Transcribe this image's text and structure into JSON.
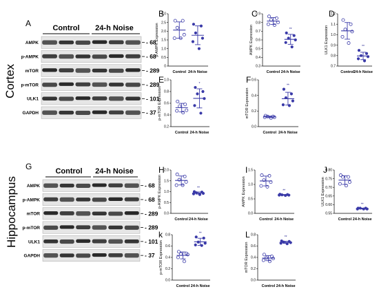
{
  "blot_panels": [
    {
      "label": "A",
      "region": "Cortex",
      "groups": [
        "Control",
        "24-h Noise"
      ],
      "rows": [
        {
          "protein": "AMPK",
          "kda": "68"
        },
        {
          "protein": "p-AMPK",
          "kda": "68"
        },
        {
          "protein": "mTOR",
          "kda": "289"
        },
        {
          "protein": "p-mTOR",
          "kda": "289"
        },
        {
          "protein": "ULK1",
          "kda": "101"
        },
        {
          "protein": "GAPDH",
          "kda": "37"
        }
      ]
    },
    {
      "label": "G",
      "region": "Hippocampus",
      "groups": [
        "Control",
        "24-h Noise"
      ],
      "rows": [
        {
          "protein": "AMPK",
          "kda": "68"
        },
        {
          "protein": "p-AMPK",
          "kda": "68"
        },
        {
          "protein": "mTOR",
          "kda": "289"
        },
        {
          "protein": "p-mTOR",
          "kda": "289"
        },
        {
          "protein": "ULK1",
          "kda": "101"
        },
        {
          "protein": "GAPDH",
          "kda": "37"
        }
      ]
    }
  ],
  "colors": {
    "points": "#3a3aa8",
    "blot_bg": "#e6e6e6",
    "band": "#1a1a1a"
  },
  "chart_data": [
    {
      "label": "B",
      "type": "scatter",
      "ylabel": "p-AMPK Expression",
      "categories": [
        "Control",
        "24-h Noise"
      ],
      "ylim": [
        0,
        3
      ],
      "yticks": [
        "0",
        "0.5",
        "1.0",
        "1.5",
        "2.0",
        "2.5",
        "3.0"
      ],
      "series": [
        {
          "values": [
            [
              2.6,
              2.6,
              2.2,
              1.8,
              1.6,
              1.6
            ],
            [
              2.4,
              2.3,
              1.9,
              1.6,
              1.4,
              1.0
            ]
          ]
        }
      ],
      "significance": [
        "",
        ""
      ]
    },
    {
      "label": "C",
      "type": "scatter",
      "ylabel": "AMPK Expression",
      "categories": [
        "Control",
        "24-h Noise"
      ],
      "ylim": [
        0.3,
        0.9
      ],
      "yticks": [
        "0.3",
        "0.4",
        "0.5",
        "0.6",
        "0.7",
        "0.8",
        "0.9"
      ],
      "series": [
        {
          "values": [
            [
              0.87,
              0.85,
              0.83,
              0.8,
              0.78,
              0.77
            ],
            [
              0.68,
              0.65,
              0.62,
              0.6,
              0.57,
              0.52
            ]
          ]
        }
      ],
      "significance": [
        "",
        "**"
      ]
    },
    {
      "label": "D",
      "type": "scatter",
      "ylabel": "ULK1 Expression",
      "categories": [
        "Control",
        "24-h Noise"
      ],
      "ylim": [
        0.7,
        1.2
      ],
      "yticks": [
        "0.7",
        "0.8",
        "0.9",
        "1.0",
        "1.1",
        "1.2"
      ],
      "series": [
        {
          "values": [
            [
              1.14,
              1.1,
              1.05,
              1.03,
              0.98,
              0.92
            ],
            [
              0.85,
              0.82,
              0.8,
              0.79,
              0.77,
              0.75
            ]
          ]
        }
      ],
      "significance": [
        "",
        "**"
      ]
    },
    {
      "label": "E",
      "type": "scatter",
      "ylabel": "p-mTOR Expression",
      "categories": [
        "Control",
        "24-h Noise"
      ],
      "ylim": [
        0.2,
        1.0
      ],
      "yticks": [
        "0.2",
        "0.4",
        "0.6",
        "0.8",
        "1.0"
      ],
      "series": [
        {
          "values": [
            [
              0.63,
              0.58,
              0.55,
              0.48,
              0.47,
              0.44
            ],
            [
              0.87,
              0.8,
              0.76,
              0.68,
              0.56,
              0.43
            ]
          ]
        }
      ],
      "significance": [
        "",
        "*"
      ]
    },
    {
      "label": "F",
      "type": "scatter",
      "ylabel": "mTOR Expression",
      "categories": [
        "Control",
        "24-h Noise"
      ],
      "ylim": [
        0.0,
        0.6
      ],
      "yticks": [
        "0.0",
        "0.2",
        "0.4",
        "0.6"
      ],
      "series": [
        {
          "values": [
            [
              0.14,
              0.13,
              0.13,
              0.12,
              0.12,
              0.11
            ],
            [
              0.48,
              0.42,
              0.37,
              0.33,
              0.28,
              0.27
            ]
          ]
        }
      ],
      "significance": [
        "",
        "**"
      ]
    },
    {
      "label": "H",
      "type": "scatter",
      "ylabel": "p-AMPK Expression",
      "categories": [
        "Control",
        "24-h Noise"
      ],
      "ylim": [
        0.0,
        2.0
      ],
      "yticks": [
        "0.0",
        "0.5",
        "1.0",
        "1.5",
        "2.0"
      ],
      "series": [
        {
          "values": [
            [
              1.8,
              1.7,
              1.55,
              1.45,
              1.3,
              1.3
            ],
            [
              1.0,
              0.98,
              0.95,
              0.92,
              0.9,
              0.87
            ]
          ]
        }
      ],
      "significance": [
        "",
        "**"
      ]
    },
    {
      "label": "I",
      "type": "scatter",
      "ylabel": "AMPK Expression",
      "categories": [
        "Control",
        "24-h Noise"
      ],
      "ylim": [
        0.0,
        1.5
      ],
      "yticks": [
        "0.0",
        "0.5",
        "1.0",
        "1.5"
      ],
      "series": [
        {
          "values": [
            [
              1.32,
              1.3,
              1.15,
              1.08,
              0.95,
              0.92
            ],
            [
              0.66,
              0.65,
              0.64,
              0.63,
              0.63,
              0.62
            ]
          ]
        }
      ],
      "significance": [
        "",
        "**"
      ]
    },
    {
      "label": "J",
      "type": "scatter",
      "ylabel": "ULK1 Expression",
      "categories": [
        "Control",
        "24-h Noise"
      ],
      "ylim": [
        0.55,
        0.8
      ],
      "yticks": [
        "0.55",
        "0.60",
        "0.65",
        "0.70",
        "0.75",
        "0.80"
      ],
      "series": [
        {
          "values": [
            [
              0.77,
              0.76,
              0.76,
              0.73,
              0.72,
              0.71
            ],
            [
              0.58,
              0.58,
              0.58,
              0.575,
              0.575,
              0.575
            ]
          ]
        }
      ],
      "significance": [
        "",
        "**"
      ]
    },
    {
      "label": "k",
      "type": "scatter",
      "ylabel": "p-mTOR Expression",
      "categories": [
        "Control",
        "24-h Noise"
      ],
      "ylim": [
        0.0,
        0.8
      ],
      "yticks": [
        "0.0",
        "0.2",
        "0.4",
        "0.6",
        "0.8"
      ],
      "series": [
        {
          "values": [
            [
              0.5,
              0.47,
              0.46,
              0.45,
              0.4,
              0.33
            ],
            [
              0.76,
              0.74,
              0.67,
              0.65,
              0.62,
              0.61
            ]
          ]
        }
      ],
      "significance": [
        "",
        "**"
      ]
    },
    {
      "label": "L",
      "type": "scatter",
      "ylabel": "mTOR Expression",
      "categories": [
        "Control",
        "24-h Noise"
      ],
      "ylim": [
        0.0,
        0.8
      ],
      "yticks": [
        "0.0",
        "0.2",
        "0.4",
        "0.6",
        "0.8"
      ],
      "series": [
        {
          "values": [
            [
              0.45,
              0.42,
              0.39,
              0.38,
              0.35,
              0.33
            ],
            [
              0.69,
              0.68,
              0.67,
              0.66,
              0.65,
              0.64
            ]
          ]
        }
      ],
      "significance": [
        "",
        "**"
      ]
    }
  ]
}
